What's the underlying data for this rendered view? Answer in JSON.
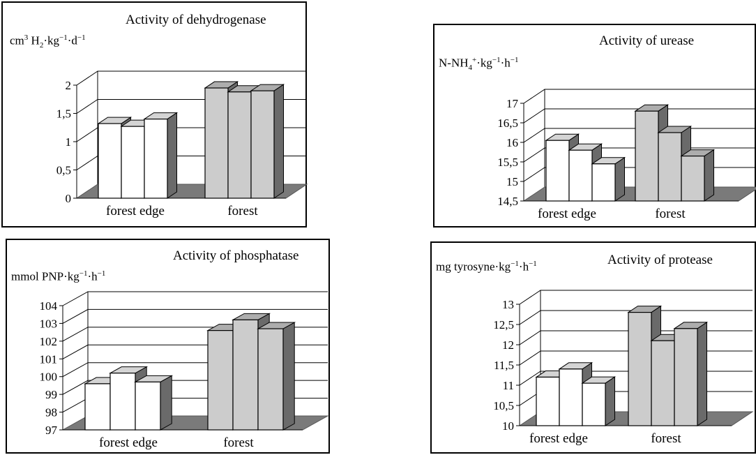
{
  "chart_data": [
    {
      "type": "bar",
      "title": "Activity of dehydrogenase",
      "ylabel": "cm³ H₂·kg⁻¹·d⁻¹",
      "categories": [
        "forest edge",
        "forest"
      ],
      "values": [
        [
          1.32,
          1.27,
          1.4
        ],
        [
          1.95,
          1.88,
          1.9
        ]
      ],
      "colors": [
        "#ffffff",
        "#cccccc"
      ],
      "ylim": [
        0,
        2
      ],
      "yticks": [
        0,
        0.5,
        1,
        1.5,
        2
      ],
      "ytick_labels": [
        "0",
        "0,5",
        "1",
        "1,5",
        "2"
      ],
      "grid": true
    },
    {
      "type": "bar",
      "title": "Activity of urease",
      "ylabel": "N-NH₄⁺·kg⁻¹·h⁻¹",
      "categories": [
        "forest edge",
        "forest"
      ],
      "values": [
        [
          16.05,
          15.8,
          15.45
        ],
        [
          16.8,
          16.25,
          15.65
        ]
      ],
      "colors": [
        "#ffffff",
        "#cccccc"
      ],
      "ylim": [
        14.5,
        17
      ],
      "yticks": [
        14.5,
        15,
        15.5,
        16,
        16.5,
        17
      ],
      "ytick_labels": [
        "14,5",
        "15",
        "15,5",
        "16",
        "16,5",
        "17"
      ],
      "grid": true
    },
    {
      "type": "bar",
      "title": "Activity of phosphatase",
      "ylabel": "mmol PNP·kg⁻¹·h⁻¹",
      "categories": [
        "forest edge",
        "forest"
      ],
      "values": [
        [
          99.6,
          100.2,
          99.7
        ],
        [
          102.6,
          103.2,
          102.7
        ]
      ],
      "colors": [
        "#ffffff",
        "#cccccc"
      ],
      "ylim": [
        97,
        104
      ],
      "yticks": [
        97,
        98,
        99,
        100,
        101,
        102,
        103,
        104
      ],
      "ytick_labels": [
        "97",
        "98",
        "99",
        "100",
        "101",
        "102",
        "103",
        "104"
      ],
      "grid": true
    },
    {
      "type": "bar",
      "title": "Activity of protease",
      "ylabel": "mg tyrosyne·kg⁻¹·h⁻¹",
      "categories": [
        "forest edge",
        "forest"
      ],
      "values": [
        [
          11.2,
          11.4,
          11.05
        ],
        [
          12.8,
          12.1,
          12.4
        ]
      ],
      "colors": [
        "#ffffff",
        "#cccccc"
      ],
      "ylim": [
        10,
        13
      ],
      "yticks": [
        10,
        10.5,
        11,
        11.5,
        12,
        12.5,
        13
      ],
      "ytick_labels": [
        "10",
        "10,5",
        "11",
        "11,5",
        "12",
        "12,5",
        "13"
      ],
      "grid": true
    }
  ]
}
